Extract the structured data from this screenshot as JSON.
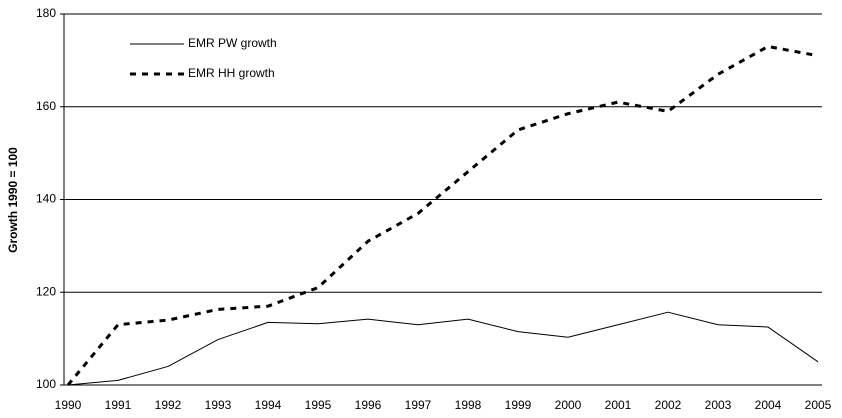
{
  "chart_data": {
    "type": "line",
    "y_label": "Growth 1990 = 100",
    "categories": [
      1990,
      1991,
      1992,
      1993,
      1994,
      1995,
      1996,
      1997,
      1998,
      1999,
      2000,
      2001,
      2002,
      2003,
      2004,
      2005
    ],
    "series": [
      {
        "name": "EMR PW growth",
        "color": "#000000",
        "linestyle": "solid",
        "values": [
          100,
          101,
          104,
          109.8,
          113.5,
          113.2,
          114.2,
          113,
          114.2,
          111.5,
          110.3,
          113,
          115.7,
          113,
          112.5,
          105
        ]
      },
      {
        "name": "EMR HH growth",
        "color": "#000000",
        "linestyle": "dashed",
        "values": [
          100,
          113,
          114,
          116.3,
          117,
          121,
          131,
          137,
          146,
          155,
          158.5,
          161,
          159,
          167,
          173,
          171
        ]
      }
    ],
    "ylim": [
      100,
      180
    ],
    "yticks": [
      100,
      120,
      140,
      160,
      180
    ],
    "grid": true,
    "legend": "upper left"
  }
}
